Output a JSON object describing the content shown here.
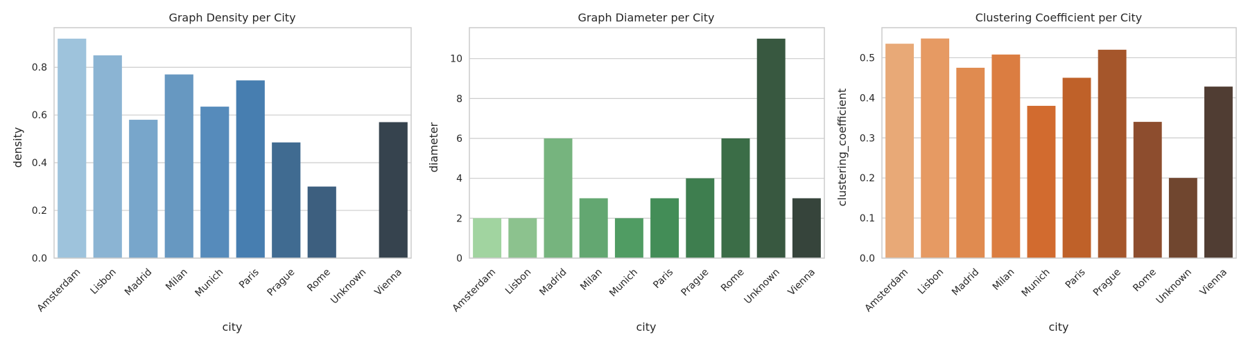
{
  "charts": [
    {
      "key": "density",
      "chart_data": {
        "type": "bar",
        "title": "Graph Density per City",
        "xlabel": "city",
        "ylabel": "density",
        "categories": [
          "Amsterdam",
          "Lisbon",
          "Madrid",
          "Milan",
          "Munich",
          "Paris",
          "Prague",
          "Rome",
          "Unknown",
          "Vienna"
        ],
        "values": [
          0.92,
          0.85,
          0.58,
          0.77,
          0.635,
          0.745,
          0.485,
          0.3,
          0.0,
          0.57
        ],
        "yticks": [
          0.0,
          0.2,
          0.4,
          0.6,
          0.8
        ],
        "ytick_labels": [
          "0.0",
          "0.2",
          "0.4",
          "0.6",
          "0.8"
        ],
        "ylim": [
          0,
          0.966
        ],
        "grid": "horizontal",
        "colors": [
          "#9ec3dc",
          "#8bb4d3",
          "#78a6cb",
          "#6798c1",
          "#568bbb",
          "#477eb0",
          "#406b91",
          "#3d5f7f",
          "#384f63",
          "#36434e"
        ]
      }
    },
    {
      "key": "diameter",
      "chart_data": {
        "type": "bar",
        "title": "Graph Diameter per City",
        "xlabel": "city",
        "ylabel": "diameter",
        "categories": [
          "Amsterdam",
          "Lisbon",
          "Madrid",
          "Milan",
          "Munich",
          "Paris",
          "Prague",
          "Rome",
          "Unknown",
          "Vienna"
        ],
        "values": [
          2,
          2,
          6,
          3,
          2,
          3,
          4,
          6,
          11,
          3
        ],
        "yticks": [
          0,
          2,
          4,
          6,
          8,
          10
        ],
        "ytick_labels": [
          "0",
          "2",
          "4",
          "6",
          "8",
          "10"
        ],
        "ylim": [
          0,
          11.55
        ],
        "grid": "horizontal",
        "colors": [
          "#a1d4a0",
          "#8cc28e",
          "#76b47e",
          "#63a771",
          "#509c63",
          "#438d57",
          "#3e7e4f",
          "#3b6d47",
          "#385840",
          "#36443b"
        ]
      }
    },
    {
      "key": "clustering",
      "chart_data": {
        "type": "bar",
        "title": "Clustering Coefficient per City",
        "xlabel": "city",
        "ylabel": "clustering_coefficient",
        "categories": [
          "Amsterdam",
          "Lisbon",
          "Madrid",
          "Milan",
          "Munich",
          "Paris",
          "Prague",
          "Rome",
          "Unknown",
          "Vienna"
        ],
        "values": [
          0.535,
          0.548,
          0.475,
          0.508,
          0.38,
          0.45,
          0.52,
          0.34,
          0.2,
          0.428
        ],
        "yticks": [
          0.0,
          0.1,
          0.2,
          0.3,
          0.4,
          0.5
        ],
        "ytick_labels": [
          "0.0",
          "0.1",
          "0.2",
          "0.3",
          "0.4",
          "0.5"
        ],
        "ylim": [
          0,
          0.575
        ],
        "grid": "horizontal",
        "colors": [
          "#e8a977",
          "#e69a63",
          "#e08b50",
          "#db7d41",
          "#d26b2f",
          "#bf6129",
          "#a5562b",
          "#8d4d2e",
          "#70462f",
          "#503d33"
        ]
      }
    }
  ]
}
